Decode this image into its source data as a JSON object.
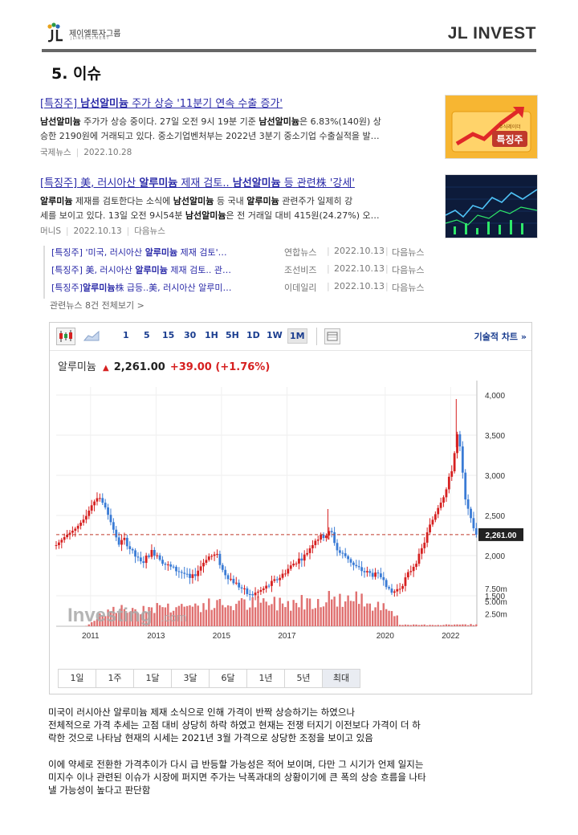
{
  "header": {
    "logo_text": "제이엘투자그룹",
    "logo_sub": "JLINVESTMENT",
    "brand": "JL INVEST",
    "section_title": "5. 이슈"
  },
  "news": [
    {
      "title_pre": "[특징주] ",
      "title_bold": "남선알미늄",
      "title_post": " 주가 상승 '11분기 연속 수출 증가'",
      "body_line1_a": "남선알미늄",
      "body_line1_b": " 주가가 상승 중이다. 27일 오전 9시 19분 기준 ",
      "body_line1_c": "남선알미늄",
      "body_line1_d": "은 6.83%(140원) 상",
      "body_line2": "승한 2190원에 거래되고 있다. 중소기업벤처부는 2022년 3분기 중소기업 수출실적을 발…",
      "source": "국제뉴스",
      "date": "2022.10.28",
      "thumb_label": "특징주",
      "thumb_small": "주식레이더"
    },
    {
      "title_pre": "[특징주] 美, 러시아산 ",
      "title_bold": "알루미늄",
      "title_mid": " 제재 검토.. ",
      "title_bold2": "남선알미늄",
      "title_post": " 등 관련株 '강세'",
      "body_line1_a": "알루미늄",
      "body_line1_b": " 제재를 검토한다는 소식에 ",
      "body_line1_c": "남선알미늄",
      "body_line1_d": " 등 국내 ",
      "body_line1_e": "알루미늄",
      "body_line1_f": " 관련주가 일제히 강",
      "body_line2_a": "세를 보이고 있다. 13일 오전 9시54분 ",
      "body_line2_b": "남선알미늄",
      "body_line2_c": "은 전 거래일 대비 415원(24.27%) 오…",
      "source": "머니S",
      "date": "2022.10.13",
      "channel": "다음뉴스"
    }
  ],
  "related": [
    {
      "pre": "[특징주] '미국, 러시아산 ",
      "bold": "알루미늄",
      "post": " 제재 검토'…",
      "source": "연합뉴스",
      "date": "2022.10.13",
      "channel": "다음뉴스"
    },
    {
      "pre": "[특징주] 美, 러시아산 ",
      "bold": "알루미늄",
      "post": " 제재 검토.. 관…",
      "source": "조선비즈",
      "date": "2022.10.13",
      "channel": "다음뉴스"
    },
    {
      "pre": "[특징주]",
      "bold": "알루미늄",
      "post": "株 급등..美, 러시아산 알루미…",
      "source": "이데일리",
      "date": "2022.10.13",
      "channel": "다음뉴스"
    }
  ],
  "related_more": "관련뉴스 8건 전체보기 >",
  "chart_widget": {
    "toolbar": [
      "1",
      "5",
      "15",
      "30",
      "1H",
      "5H",
      "1D",
      "1W",
      "1M"
    ],
    "active": "1M",
    "tech_link": "기술적 차트 »",
    "name": "알루미늄",
    "arrow": "▲",
    "price": "2,261.00",
    "change": "+39.00 (+1.76%)",
    "periods": [
      "1일",
      "1주",
      "1달",
      "3달",
      "6달",
      "1년",
      "5년",
      "최대"
    ],
    "watermark": "Investing",
    "watermark_suffix": ".com",
    "colors": {
      "up": "#d62020",
      "down": "#3a7bd5",
      "volume": "#e07070"
    }
  },
  "chart_data": {
    "type": "candlestick",
    "x_ticks": [
      "2011",
      "2013",
      "2015",
      "2017",
      "2020",
      "2022"
    ],
    "y_ticks": [
      "4,000",
      "3,500",
      "3,000",
      "2,500",
      "2,000",
      "1,500"
    ],
    "ylim": [
      1300,
      4100
    ],
    "volume_ticks": [
      "7.50m",
      "5.00m",
      "2.50m"
    ],
    "current_price": 2261,
    "current_label": "2,261.00",
    "close_path": [
      [
        2010.0,
        2130
      ],
      [
        2010.3,
        2250
      ],
      [
        2010.6,
        2340
      ],
      [
        2010.9,
        2480
      ],
      [
        2011.1,
        2640
      ],
      [
        2011.3,
        2740
      ],
      [
        2011.5,
        2600
      ],
      [
        2011.7,
        2380
      ],
      [
        2011.9,
        2150
      ],
      [
        2012.1,
        2200
      ],
      [
        2012.3,
        2050
      ],
      [
        2012.6,
        1900
      ],
      [
        2012.9,
        2050
      ],
      [
        2013.1,
        2010
      ],
      [
        2013.3,
        1900
      ],
      [
        2013.6,
        1830
      ],
      [
        2013.9,
        1780
      ],
      [
        2014.1,
        1700
      ],
      [
        2014.3,
        1800
      ],
      [
        2014.6,
        1980
      ],
      [
        2014.9,
        2010
      ],
      [
        2015.1,
        1800
      ],
      [
        2015.4,
        1680
      ],
      [
        2015.7,
        1580
      ],
      [
        2015.9,
        1500
      ],
      [
        2016.2,
        1550
      ],
      [
        2016.5,
        1630
      ],
      [
        2016.8,
        1720
      ],
      [
        2017.0,
        1800
      ],
      [
        2017.3,
        1920
      ],
      [
        2017.6,
        2000
      ],
      [
        2017.9,
        2200
      ],
      [
        2018.2,
        2250
      ],
      [
        2018.4,
        2300
      ],
      [
        2018.6,
        2050
      ],
      [
        2018.9,
        1980
      ],
      [
        2019.1,
        1870
      ],
      [
        2019.4,
        1800
      ],
      [
        2019.7,
        1760
      ],
      [
        2020.0,
        1730
      ],
      [
        2020.2,
        1520
      ],
      [
        2020.5,
        1600
      ],
      [
        2020.8,
        1800
      ],
      [
        2021.1,
        2000
      ],
      [
        2021.4,
        2350
      ],
      [
        2021.7,
        2650
      ],
      [
        2021.9,
        2800
      ],
      [
        2022.1,
        3100
      ],
      [
        2022.25,
        3500
      ],
      [
        2022.35,
        3300
      ],
      [
        2022.5,
        2700
      ],
      [
        2022.7,
        2420
      ],
      [
        2022.8,
        2261
      ]
    ],
    "volume_path": [
      [
        2010.0,
        0.0
      ],
      [
        2010.9,
        0.0
      ],
      [
        2011.5,
        3.5
      ],
      [
        2013.0,
        4.5
      ],
      [
        2015.0,
        5.0
      ],
      [
        2017.0,
        5.5
      ],
      [
        2018.3,
        6.5
      ],
      [
        2019.5,
        6.0
      ],
      [
        2020.3,
        4.2
      ],
      [
        2020.5,
        0.3
      ],
      [
        2022.8,
        0.4
      ]
    ]
  },
  "analysis": [
    "미국이 러시아산 알루미늄 제재 소식으로 인해 가격이 반짝 상승하기는 하였으나",
    "전체적으로 가격 추세는 고점 대비 상당히 하락 하였고 현재는 전쟁 터지기 이전보다 가격이 더 하",
    "락한 것으로 나타남 현재의 시세는 2021년 3월 가격으로 상당한 조정을 보이고 있음",
    "이에 약세로 전환한 가격추이가 다시 급 반등할 가능성은 적어 보이며, 다만 그 시기가 언제 일지는",
    "미지수 이나 관련된 이슈가 시장에 퍼지면 주가는 낙폭과대의 상황이기에 큰 폭의 상승 흐름을 나타",
    "낼 가능성이 높다고 판단함"
  ]
}
